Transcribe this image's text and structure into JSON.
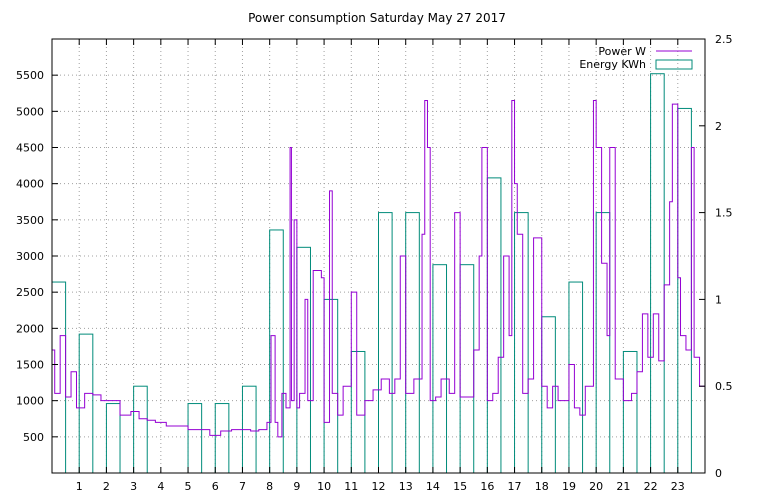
{
  "chart_data": {
    "type": "line",
    "title": "Power consumption Saturday May 27 2017",
    "x_ticks": [
      "1",
      "2",
      "3",
      "4",
      "5",
      "6",
      "7",
      "8",
      "9",
      "10",
      "11",
      "12",
      "13",
      "14",
      "15",
      "16",
      "17",
      "18",
      "19",
      "20",
      "21",
      "22",
      "23"
    ],
    "y_left_ticks": [
      "500",
      "1000",
      "1500",
      "2000",
      "2500",
      "3000",
      "3500",
      "4000",
      "4500",
      "5000",
      "5500"
    ],
    "y_right_ticks": [
      "0",
      "0.5",
      "1",
      "1.5",
      "2",
      "2.5"
    ],
    "xlim": [
      0,
      24
    ],
    "y_left_lim": [
      0,
      6000
    ],
    "y_right_lim": [
      0,
      2.5
    ],
    "grid": true,
    "legend_position": "top-right",
    "series": [
      {
        "name": "Power W",
        "kind": "line",
        "axis": "left",
        "color": "#9400d3",
        "points": [
          [
            0.0,
            1700
          ],
          [
            0.1,
            1100
          ],
          [
            0.3,
            1900
          ],
          [
            0.5,
            1050
          ],
          [
            0.7,
            1400
          ],
          [
            0.9,
            900
          ],
          [
            1.2,
            1100
          ],
          [
            1.5,
            1080
          ],
          [
            1.8,
            1000
          ],
          [
            2.1,
            1000
          ],
          [
            2.5,
            800
          ],
          [
            2.9,
            850
          ],
          [
            3.2,
            750
          ],
          [
            3.5,
            730
          ],
          [
            3.8,
            700
          ],
          [
            4.2,
            650
          ],
          [
            4.6,
            650
          ],
          [
            5.0,
            600
          ],
          [
            5.4,
            600
          ],
          [
            5.8,
            520
          ],
          [
            6.2,
            580
          ],
          [
            6.6,
            600
          ],
          [
            7.0,
            600
          ],
          [
            7.3,
            580
          ],
          [
            7.6,
            600
          ],
          [
            7.9,
            700
          ],
          [
            8.05,
            1900
          ],
          [
            8.2,
            700
          ],
          [
            8.3,
            500
          ],
          [
            8.45,
            1100
          ],
          [
            8.6,
            900
          ],
          [
            8.75,
            4500
          ],
          [
            8.8,
            1000
          ],
          [
            8.9,
            3500
          ],
          [
            9.0,
            900
          ],
          [
            9.1,
            1100
          ],
          [
            9.3,
            2400
          ],
          [
            9.4,
            1000
          ],
          [
            9.6,
            2800
          ],
          [
            9.9,
            2700
          ],
          [
            10.0,
            700
          ],
          [
            10.2,
            3900
          ],
          [
            10.3,
            1100
          ],
          [
            10.5,
            800
          ],
          [
            10.7,
            1200
          ],
          [
            11.0,
            2500
          ],
          [
            11.2,
            800
          ],
          [
            11.5,
            1000
          ],
          [
            11.8,
            1150
          ],
          [
            12.1,
            1300
          ],
          [
            12.4,
            1100
          ],
          [
            12.6,
            1300
          ],
          [
            12.8,
            3000
          ],
          [
            13.0,
            1100
          ],
          [
            13.3,
            1300
          ],
          [
            13.6,
            3300
          ],
          [
            13.7,
            5150
          ],
          [
            13.8,
            4500
          ],
          [
            13.9,
            1000
          ],
          [
            14.1,
            1050
          ],
          [
            14.3,
            1300
          ],
          [
            14.6,
            1100
          ],
          [
            14.8,
            3600
          ],
          [
            15.0,
            1050
          ],
          [
            15.2,
            1050
          ],
          [
            15.5,
            1700
          ],
          [
            15.7,
            3000
          ],
          [
            15.8,
            4500
          ],
          [
            16.0,
            1000
          ],
          [
            16.2,
            1100
          ],
          [
            16.4,
            1600
          ],
          [
            16.6,
            3000
          ],
          [
            16.8,
            1900
          ],
          [
            16.9,
            5150
          ],
          [
            17.0,
            4000
          ],
          [
            17.1,
            3300
          ],
          [
            17.3,
            1100
          ],
          [
            17.5,
            1300
          ],
          [
            17.7,
            3250
          ],
          [
            17.9,
            3250
          ],
          [
            18.0,
            1200
          ],
          [
            18.2,
            900
          ],
          [
            18.4,
            1200
          ],
          [
            18.6,
            1000
          ],
          [
            18.8,
            1000
          ],
          [
            19.0,
            1500
          ],
          [
            19.2,
            900
          ],
          [
            19.4,
            800
          ],
          [
            19.6,
            1200
          ],
          [
            19.9,
            5150
          ],
          [
            20.0,
            4500
          ],
          [
            20.2,
            2900
          ],
          [
            20.4,
            1900
          ],
          [
            20.5,
            4500
          ],
          [
            20.7,
            1300
          ],
          [
            21.0,
            1000
          ],
          [
            21.3,
            1100
          ],
          [
            21.5,
            1400
          ],
          [
            21.7,
            2200
          ],
          [
            21.9,
            1600
          ],
          [
            22.1,
            2200
          ],
          [
            22.3,
            1550
          ],
          [
            22.5,
            2600
          ],
          [
            22.7,
            3750
          ],
          [
            22.8,
            5100
          ],
          [
            23.0,
            2700
          ],
          [
            23.1,
            1900
          ],
          [
            23.3,
            1700
          ],
          [
            23.5,
            4500
          ],
          [
            23.6,
            1600
          ],
          [
            23.8,
            1200
          ],
          [
            24.0,
            1400
          ]
        ]
      },
      {
        "name": "Energy KWh",
        "kind": "histogram",
        "axis": "right",
        "color": "#008b7a",
        "bin_width": 0.5,
        "bins": [
          [
            0,
            1.1
          ],
          [
            1,
            0.8
          ],
          [
            2,
            0.4
          ],
          [
            3,
            0.5
          ],
          [
            4,
            0
          ],
          [
            5,
            0.4
          ],
          [
            6,
            0.4
          ],
          [
            7,
            0.5
          ],
          [
            8,
            1.4
          ],
          [
            9,
            1.3
          ],
          [
            10,
            1.0
          ],
          [
            11,
            0.7
          ],
          [
            12,
            1.5
          ],
          [
            13,
            1.5
          ],
          [
            14,
            1.2
          ],
          [
            15,
            1.2
          ],
          [
            16,
            1.7
          ],
          [
            17,
            1.5
          ],
          [
            18,
            0.9
          ],
          [
            19,
            1.1
          ],
          [
            20,
            1.5
          ],
          [
            21,
            0.7
          ],
          [
            22,
            2.3
          ],
          [
            23,
            2.1
          ]
        ]
      }
    ]
  }
}
